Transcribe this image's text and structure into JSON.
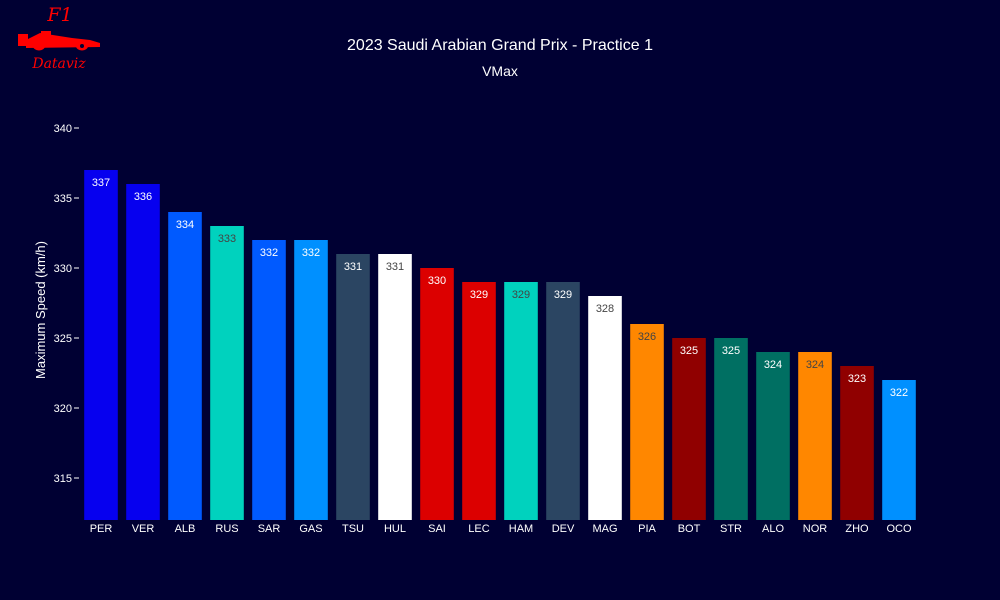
{
  "logo": {
    "top_text": "F1",
    "bottom_text": "Dataviz",
    "color": "#ff0000"
  },
  "chart_data": {
    "type": "bar",
    "title": "2023 Saudi Arabian Grand Prix - Practice 1",
    "subtitle": "VMax",
    "xlabel": "",
    "ylabel": "Maximum Speed (km/h)",
    "ylim": [
      312,
      342
    ],
    "yticks": [
      315,
      320,
      325,
      330,
      335,
      340
    ],
    "grid": false,
    "background": "#000033",
    "categories": [
      "PER",
      "VER",
      "ALB",
      "RUS",
      "SAR",
      "GAS",
      "TSU",
      "HUL",
      "SAI",
      "LEC",
      "HAM",
      "DEV",
      "MAG",
      "PIA",
      "BOT",
      "STR",
      "ALO",
      "NOR",
      "ZHO",
      "OCO"
    ],
    "values": [
      337,
      336,
      334,
      333,
      332,
      332,
      331,
      331,
      330,
      329,
      329,
      329,
      328,
      326,
      325,
      325,
      324,
      324,
      323,
      322
    ],
    "bar_colors": [
      "#0600ef",
      "#0600ef",
      "#005aff",
      "#00d2be",
      "#005aff",
      "#0090ff",
      "#2b4562",
      "#ffffff",
      "#dc0000",
      "#dc0000",
      "#00d2be",
      "#2b4562",
      "#ffffff",
      "#ff8700",
      "#900000",
      "#006f62",
      "#006f62",
      "#ff8700",
      "#900000",
      "#0090ff"
    ],
    "label_colors": [
      "#ffffff",
      "#ffffff",
      "#ffffff",
      "#444444",
      "#ffffff",
      "#ffffff",
      "#ffffff",
      "#444444",
      "#ffffff",
      "#ffffff",
      "#444444",
      "#ffffff",
      "#444444",
      "#444444",
      "#ffffff",
      "#ffffff",
      "#ffffff",
      "#444444",
      "#ffffff",
      "#ffffff"
    ]
  }
}
